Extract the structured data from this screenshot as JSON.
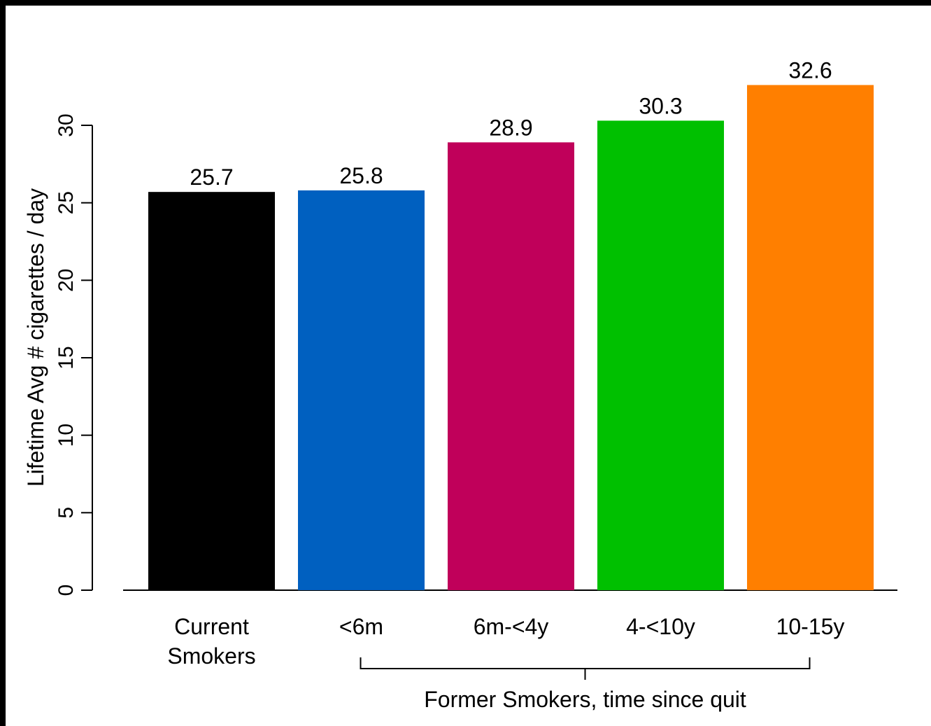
{
  "chart_data": {
    "type": "bar",
    "categories": [
      [
        "Current",
        "Smokers"
      ],
      [
        "<6m"
      ],
      [
        "6m-<4y"
      ],
      [
        "4-<10y"
      ],
      [
        "10-15y"
      ]
    ],
    "values": [
      25.7,
      25.8,
      28.9,
      30.3,
      32.6
    ],
    "data_labels": [
      "25.7",
      "25.8",
      "28.9",
      "30.3",
      "32.6"
    ],
    "colors": [
      "#000000",
      "#0060C0",
      "#C0005A",
      "#00C000",
      "#FF7F00"
    ],
    "ylabel": "Lifetime Avg # cigarettes / day",
    "yticks": [
      0,
      5,
      10,
      15,
      20,
      25,
      30
    ],
    "ylim": [
      0,
      30
    ],
    "group_label": "Former Smokers, time since quit",
    "group_span": [
      1,
      4
    ],
    "grid": false,
    "legend": "none"
  }
}
